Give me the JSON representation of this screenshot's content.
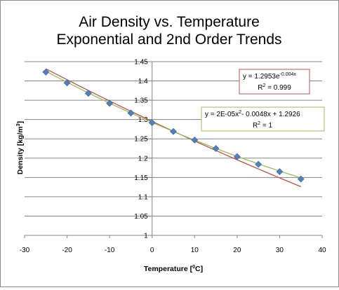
{
  "chart_data": {
    "type": "scatter",
    "title_line1": "Air Density vs. Temperature",
    "title_line2": "Exponential and 2nd Order Trends",
    "xlabel": "Temperature [",
    "xlabel_sup": "0",
    "xlabel_end": "C]",
    "ylabel": "Density [kg/m",
    "ylabel_sup": "3",
    "ylabel_end": "]",
    "xlim": [
      -30,
      40
    ],
    "ylim": [
      1,
      1.45
    ],
    "x_ticks": [
      "-30",
      "-20",
      "-10",
      "0",
      "10",
      "20",
      "30",
      "40"
    ],
    "y_ticks": [
      "1",
      "1.05",
      "1.1",
      "1.15",
      "1.2",
      "1.25",
      "1.3",
      "1.35",
      "1.4",
      "1.45"
    ],
    "grid": "horizontal",
    "x": [
      -25,
      -20,
      -15,
      -10,
      -5,
      0,
      5,
      10,
      15,
      20,
      25,
      30,
      35
    ],
    "y": [
      1.423,
      1.395,
      1.368,
      1.342,
      1.317,
      1.292,
      1.269,
      1.247,
      1.225,
      1.204,
      1.184,
      1.165,
      1.146
    ],
    "marker_color": "#4f81bd",
    "trendlines": [
      {
        "kind": "exponential",
        "a": 1.2953,
        "b": -0.004,
        "color": "#c0504d",
        "equation_base": "y = 1.2953e",
        "equation_exp": "-0.004x",
        "r2_base": "R",
        "r2_sup": "2",
        "r2_value": " = 0.999",
        "box_border": "#c0504d"
      },
      {
        "kind": "polynomial",
        "c2": 2e-05,
        "c1": -0.0048,
        "c0": 1.2926,
        "color": "#9bbb59",
        "equation_part1": "y = 2E-05x",
        "equation_sup": "2",
        "equation_part2": "- 0.0048x + 1.2926",
        "r2_base": "R",
        "r2_sup": "2",
        "r2_value": " = 1",
        "box_border": "#9bbb59"
      }
    ]
  }
}
